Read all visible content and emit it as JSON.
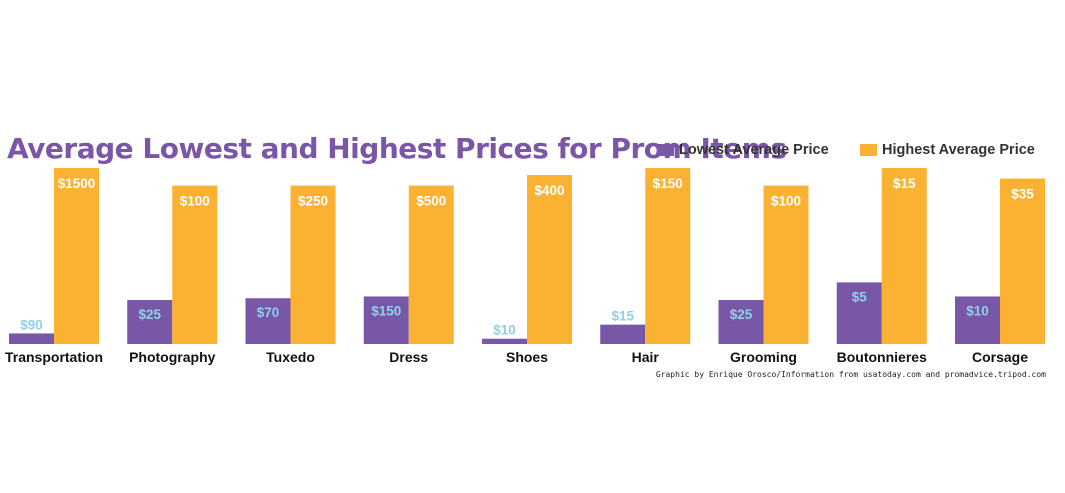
{
  "chart_data": {
    "type": "bar",
    "title": "Average Lowest and Highest Prices for Prom Items",
    "categories": [
      "Transportation",
      "Photography",
      "Tuxedo",
      "Dress",
      "Shoes",
      "Hair",
      "Grooming",
      "Boutonnieres",
      "Corsage"
    ],
    "series": [
      {
        "name": "Lowest Average Price",
        "values": [
          90,
          25,
          70,
          150,
          10,
          15,
          25,
          5,
          10
        ],
        "labels": [
          "$90",
          "$25",
          "$70",
          "$150",
          "$10",
          "$15",
          "$25",
          "$5",
          "$10"
        ],
        "relative_height": [
          0.06,
          0.25,
          0.26,
          0.27,
          0.03,
          0.11,
          0.25,
          0.35,
          0.27
        ]
      },
      {
        "name": "Highest Average Price",
        "values": [
          1500,
          100,
          250,
          500,
          400,
          150,
          100,
          15,
          35
        ],
        "labels": [
          "$1500",
          "$100",
          "$250",
          "$500",
          "$400",
          "$150",
          "$100",
          "$15",
          "$35"
        ],
        "relative_height": [
          1.0,
          0.9,
          0.9,
          0.9,
          0.96,
          1.0,
          0.9,
          1.0,
          0.94
        ]
      }
    ],
    "credit": "Graphic by Enrique Orosco/Information from usatoday.com and promadvice.tripod.com",
    "legend_position": "top-right",
    "grid": false,
    "note": "Bars are not drawn to a common scale; each bar's visible height is recorded as relative_height."
  },
  "colors": {
    "title": "#7b55a6",
    "low_bar": "#7757a6",
    "high_bar": "#fbb232",
    "low_label": "#8fd0e8",
    "high_label": "#ffffff",
    "text": "#111111"
  }
}
